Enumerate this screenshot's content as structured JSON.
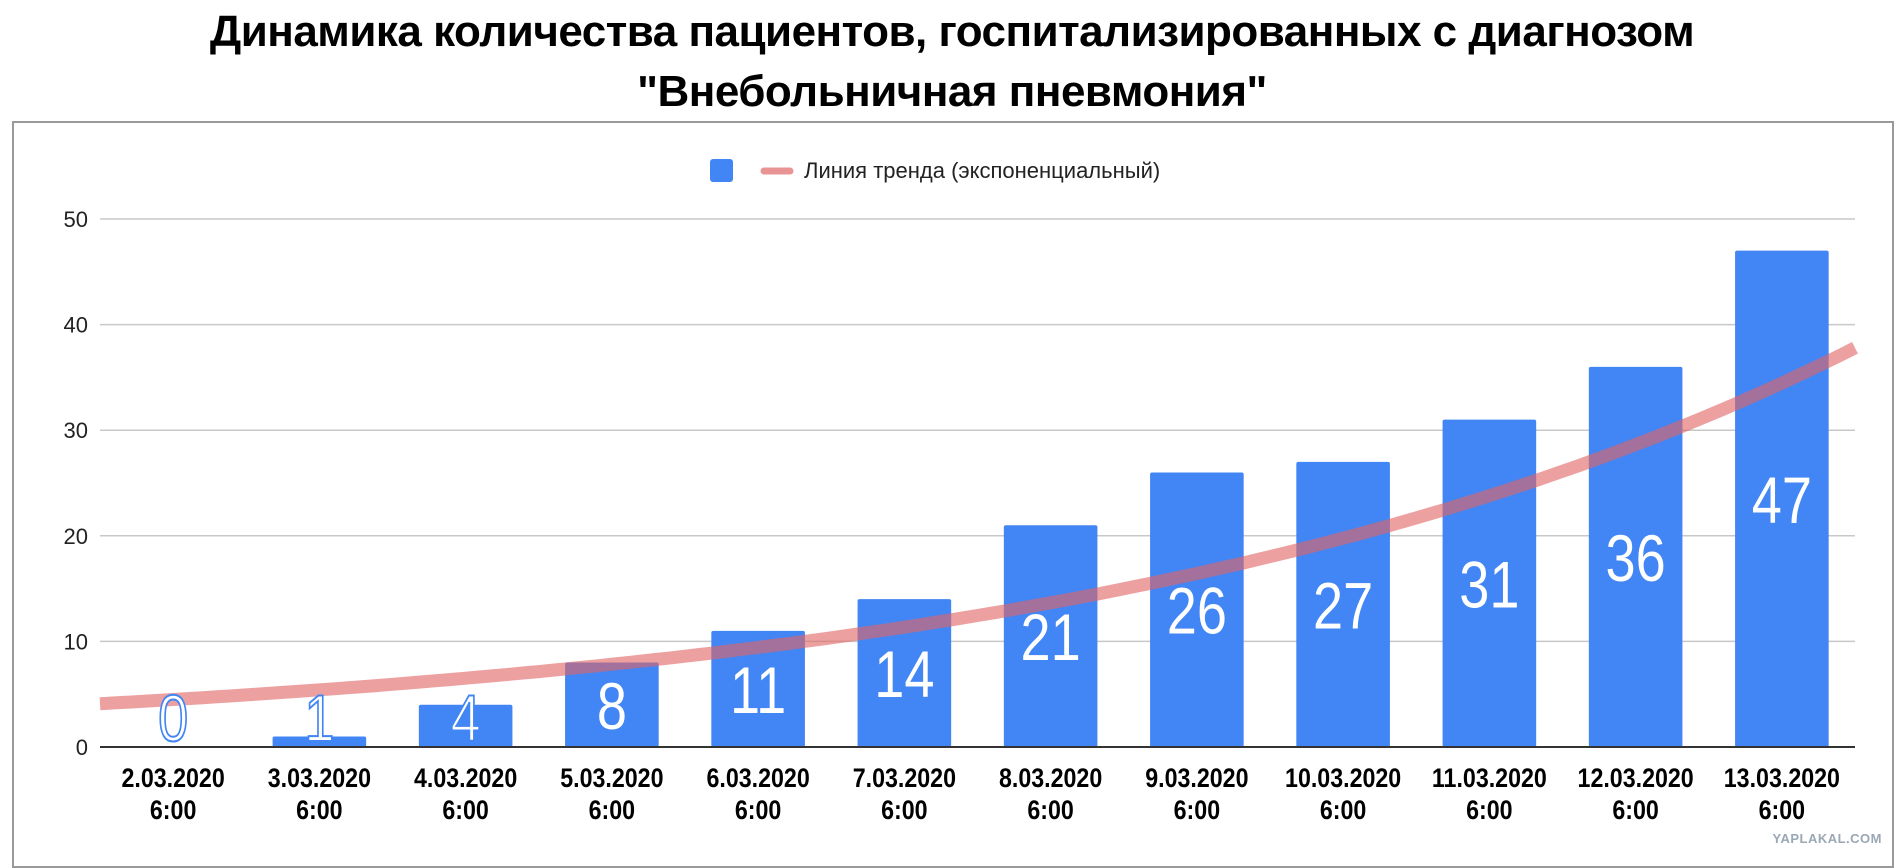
{
  "title_line1": "Динамика количества пациентов, госпитализированных с диагнозом",
  "title_line2": "\"Внебольничная пневмония\"",
  "watermark": "YAPLAKAL.COM",
  "chart_data": {
    "type": "bar",
    "categories": [
      [
        "2.03.2020",
        "6:00"
      ],
      [
        "3.03.2020",
        "6:00"
      ],
      [
        "4.03.2020",
        "6:00"
      ],
      [
        "5.03.2020",
        "6:00"
      ],
      [
        "6.03.2020",
        "6:00"
      ],
      [
        "7.03.2020",
        "6:00"
      ],
      [
        "8.03.2020",
        "6:00"
      ],
      [
        "9.03.2020",
        "6:00"
      ],
      [
        "10.03.2020",
        "6:00"
      ],
      [
        "11.03.2020",
        "6:00"
      ],
      [
        "12.03.2020",
        "6:00"
      ],
      [
        "13.03.2020",
        "6:00"
      ]
    ],
    "series": [
      {
        "values": [
          0,
          1,
          4,
          8,
          11,
          14,
          21,
          26,
          27,
          31,
          36,
          47
        ],
        "color": "#4285f4"
      }
    ],
    "trendline": {
      "type": "exponential",
      "label": "Линия тренда (экспоненциальный)",
      "color": "#e06666",
      "values": [
        4.1,
        4.9,
        5.9,
        7.1,
        8.6,
        10.3,
        12.4,
        15.0,
        18.0,
        21.7,
        26.1,
        31.4,
        37.8
      ]
    },
    "ylim": [
      0,
      50
    ],
    "yticks": [
      0,
      10,
      20,
      30,
      40,
      50
    ],
    "grid": true,
    "legend": "top-center",
    "data_labels": true,
    "xlabel": "",
    "ylabel": ""
  }
}
